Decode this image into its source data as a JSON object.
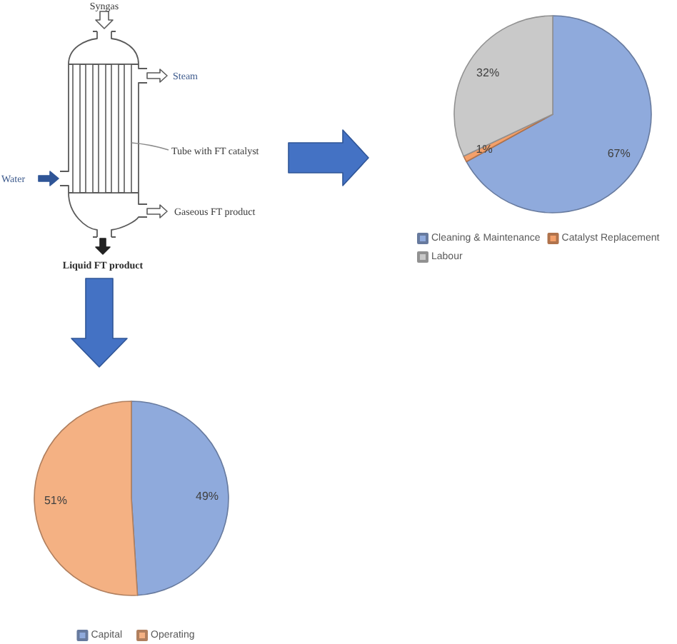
{
  "chart_data": [
    {
      "type": "other",
      "annotations": [
        "Syngas",
        "Steam",
        "Tube with FT catalyst",
        "Water",
        "Gaseous FT product",
        "Liquid FT product"
      ]
    },
    {
      "type": "pie",
      "categories": [
        "Cleaning & Maintenance",
        "Catalyst Replacement",
        "Labour"
      ],
      "values": [
        67,
        1,
        32
      ],
      "colors": [
        "#8faadc",
        "#f4a06a",
        "#c9c9c9"
      ],
      "value_labels": [
        "67%",
        "1%",
        "32%"
      ],
      "legend": "bottom"
    },
    {
      "type": "pie",
      "categories": [
        "Capital",
        "Operating"
      ],
      "values": [
        49,
        51
      ],
      "colors": [
        "#8faadc",
        "#f4b183"
      ],
      "value_labels": [
        "49%",
        "51%"
      ],
      "legend": "bottom"
    }
  ]
}
